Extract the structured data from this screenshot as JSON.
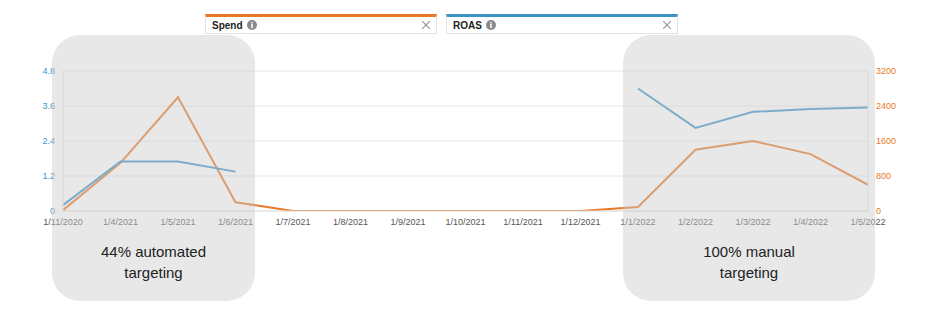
{
  "chart_data": {
    "type": "line",
    "categories": [
      "1/11/2020",
      "1/4/2021",
      "1/5/2021",
      "1/6/2021",
      "1/7/2021",
      "1/8/2021",
      "1/9/2021",
      "1/10/2021",
      "1/11/2021",
      "1/12/2021",
      "1/1/2022",
      "1/2/2022",
      "1/3/2022",
      "1/4/2022",
      "1/5/2022"
    ],
    "series": [
      {
        "name": "Spend",
        "color": "#E8782A",
        "axis": "y2",
        "marker": "none",
        "values": [
          20,
          1100,
          2600,
          200,
          0,
          0,
          0,
          0,
          0,
          0,
          90,
          1400,
          1600,
          1300,
          600
        ]
      },
      {
        "name": "ROAS",
        "color": "#3C92C8",
        "marker": "none",
        "values": [
          0.2,
          1.7,
          1.7,
          1.35,
          null,
          null,
          null,
          null,
          null,
          null,
          4.2,
          2.85,
          3.4,
          3.5,
          3.55
        ]
      }
    ],
    "ylim": [
      0,
      4.8
    ],
    "yticks": [
      0,
      1.2,
      2.4,
      3.6,
      4.8
    ],
    "y2lim": [
      0,
      3200
    ],
    "y2ticks": [
      0,
      800,
      1600,
      2400,
      3200
    ],
    "grid": true,
    "legend": "top",
    "annotations": [
      "44% automated targeting",
      "100% manual targeting"
    ]
  }
}
